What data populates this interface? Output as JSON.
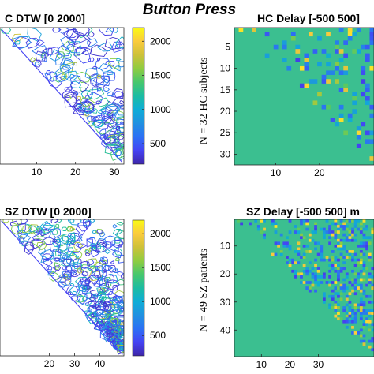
{
  "figure": {
    "suptitle": "Button Press"
  },
  "chart_data": [
    {
      "id": "hc_dtw",
      "type": "contour",
      "title": "C DTW [0 2000]",
      "xticks": [
        10,
        20,
        30
      ],
      "xlim": [
        1,
        32
      ],
      "ylim": [
        1,
        32
      ],
      "lower_triangle_blank": true,
      "colorbar": {
        "ticks": [
          500,
          1000,
          1500,
          2000
        ],
        "range": [
          200,
          2200
        ]
      }
    },
    {
      "id": "hc_delay",
      "type": "heatmap",
      "title": "HC Delay [-500 500]",
      "ylabel": "N = 32 HC subjects",
      "xticks": [
        10,
        20
      ],
      "yticks": [
        5,
        10,
        15,
        20,
        25,
        30
      ],
      "xlim": [
        1,
        32
      ],
      "ylim": [
        1,
        32
      ]
    },
    {
      "id": "sz_dtw",
      "type": "contour",
      "title": "SZ DTW [0 2000]",
      "xticks": [
        20,
        30,
        40
      ],
      "xlim": [
        1,
        49
      ],
      "ylim": [
        1,
        49
      ],
      "lower_triangle_blank": true,
      "colorbar": {
        "ticks": [
          500,
          1000,
          1500,
          2000
        ],
        "range": [
          200,
          2200
        ]
      }
    },
    {
      "id": "sz_delay",
      "type": "heatmap",
      "title": "SZ Delay [-500 500] m",
      "ylabel": "N = 49 SZ patients",
      "xticks": [
        10,
        20,
        30
      ],
      "yticks": [
        10,
        20,
        30,
        40
      ],
      "xlim": [
        1,
        49
      ],
      "ylim": [
        1,
        49
      ]
    }
  ],
  "colors": {
    "colormap": "parula",
    "background": "#ffffff"
  }
}
